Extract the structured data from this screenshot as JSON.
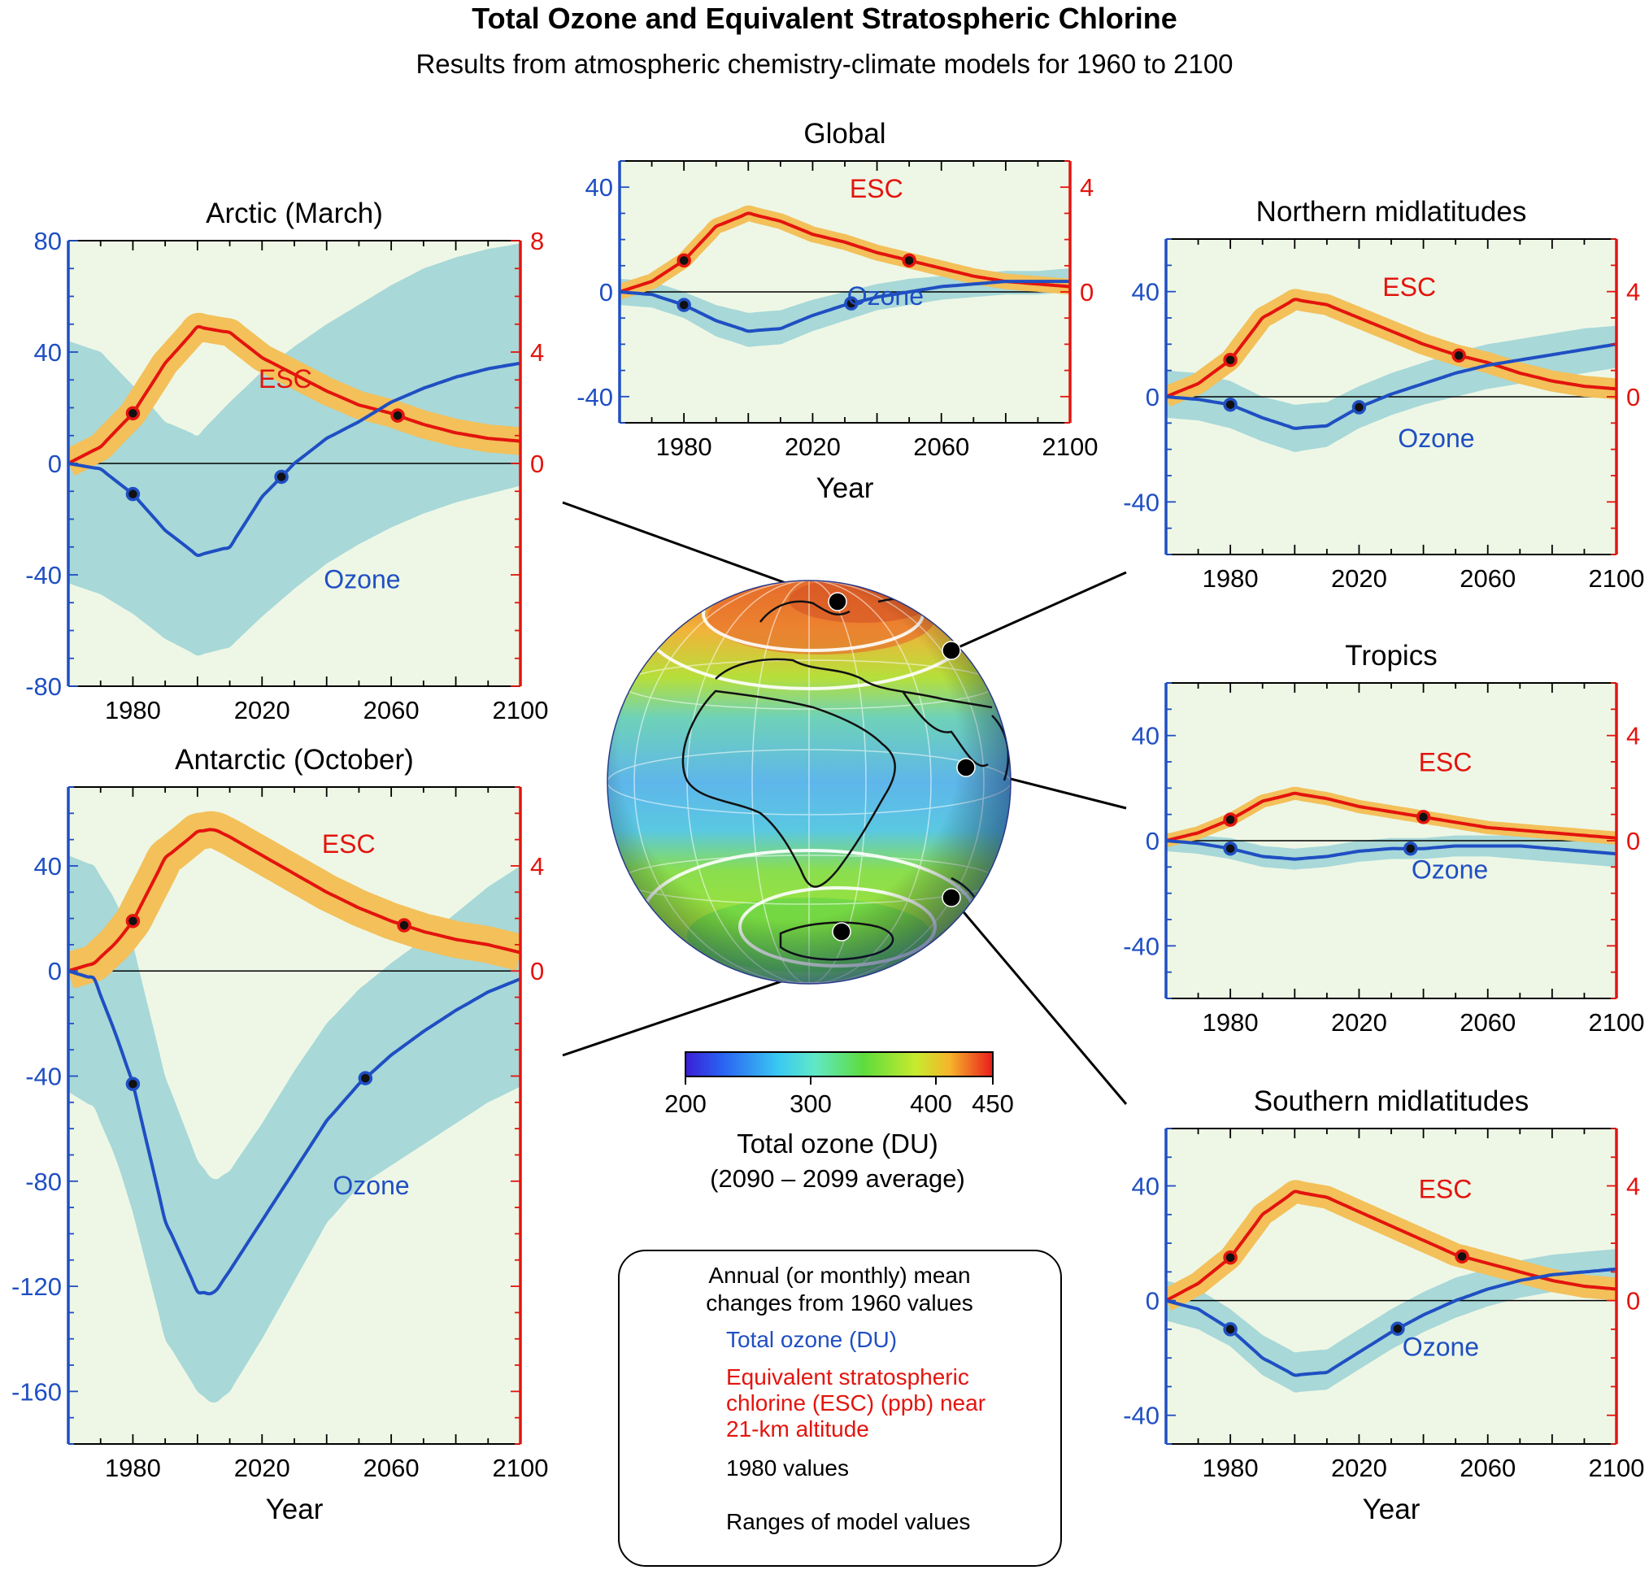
{
  "title": "Total Ozone and Equivalent Stratospheric Chlorine",
  "subtitle": "Results from atmospheric chemistry-climate models for 1960 to 2100",
  "colors": {
    "ozone": "#1f4fc2",
    "esc": "#e3140e",
    "ozone_band": "#a8d8d8",
    "esc_band": "#f3c05a",
    "panel_bg": "#eef7e6",
    "left_axis": "#1f4fc2",
    "right_axis": "#e3140e"
  },
  "colorbar": {
    "ticks": [
      "200",
      "300",
      "400",
      "450"
    ],
    "label": "Total ozone (DU)",
    "sublabel": "(2090 – 2099 average)"
  },
  "legend": {
    "heading_line1": "Annual (or monthly) mean",
    "heading_line2": "changes from 1960 values",
    "ozone_label": "Total ozone (DU)",
    "esc_label_line1": "Equivalent stratospheric",
    "esc_label_line2": "chlorine (ESC) (ppb) near",
    "esc_label_line3": "21-km altitude",
    "points_label": "1980 values",
    "ranges_label": "Ranges of model values"
  },
  "chart_data": [
    {
      "type": "line",
      "title": "Arctic (March)",
      "xlabel": "",
      "xticks": [
        "1980",
        "2020",
        "2060",
        "2100"
      ],
      "xlim": [
        1960,
        2100
      ],
      "ylim_left": [
        -80,
        80
      ],
      "ylim_right": [
        -8,
        8
      ],
      "yticks_left": [
        "80",
        "40",
        "0",
        "-40",
        "-80"
      ],
      "yticks_right": [
        "8",
        "4",
        "0"
      ],
      "ozone_label": "Ozone",
      "esc_label": "ESC",
      "x": [
        1960,
        1970,
        1980,
        1990,
        2000,
        2010,
        2020,
        2030,
        2040,
        2050,
        2060,
        2070,
        2080,
        2090,
        2100
      ],
      "ozone": [
        0,
        -2,
        -11,
        -24,
        -33,
        -30,
        -12,
        0,
        9,
        15,
        22,
        27,
        31,
        34,
        36
      ],
      "ozone_band_low": [
        -43,
        -47,
        -54,
        -63,
        -69,
        -66,
        -55,
        -45,
        -36,
        -29,
        -23,
        -18,
        -14,
        -11,
        -8
      ],
      "ozone_band_high": [
        44,
        40,
        28,
        15,
        10,
        22,
        33,
        42,
        50,
        57,
        64,
        70,
        74,
        77,
        79
      ],
      "esc": [
        0,
        0.6,
        1.8,
        3.6,
        4.9,
        4.7,
        3.8,
        3.2,
        2.6,
        2.1,
        1.8,
        1.4,
        1.1,
        0.9,
        0.8
      ],
      "esc_band": 0.5,
      "points_1980_x": [
        1980,
        2026
      ],
      "points_esc_x": [
        1980,
        2062
      ]
    },
    {
      "type": "line",
      "title": "Antarctic (October)",
      "xlabel": "Year",
      "xticks": [
        "1980",
        "2020",
        "2060",
        "2100"
      ],
      "xlim": [
        1960,
        2100
      ],
      "ylim_left": [
        -180,
        70
      ],
      "ylim_right": [
        -18,
        7
      ],
      "yticks_left": [
        "40",
        "0",
        "-40",
        "-80",
        "-120",
        "-160"
      ],
      "yticks_right": [
        "4",
        "0"
      ],
      "ozone_label": "Ozone",
      "esc_label": "ESC",
      "x": [
        1960,
        1968,
        1975,
        1980,
        1990,
        2000,
        2005,
        2010,
        2020,
        2030,
        2040,
        2050,
        2060,
        2070,
        2080,
        2090,
        2100
      ],
      "ozone": [
        0,
        -3,
        -25,
        -43,
        -95,
        -122,
        -123,
        -114,
        -95,
        -76,
        -57,
        -43,
        -32,
        -23,
        -15,
        -8,
        -3
      ],
      "ozone_band_low": [
        -46,
        -52,
        -72,
        -92,
        -140,
        -160,
        -165,
        -160,
        -140,
        -118,
        -96,
        -82,
        -74,
        -66,
        -58,
        -50,
        -44
      ],
      "ozone_band_high": [
        44,
        40,
        26,
        10,
        -40,
        -72,
        -80,
        -76,
        -58,
        -38,
        -20,
        -7,
        3,
        12,
        22,
        32,
        40
      ],
      "esc": [
        0,
        0.3,
        1.1,
        1.9,
        4.3,
        5.3,
        5.4,
        5.1,
        4.4,
        3.7,
        3.0,
        2.4,
        1.9,
        1.5,
        1.2,
        1.0,
        0.7
      ],
      "esc_band": 0.7,
      "points_1980_x": [
        1980,
        2052
      ],
      "points_esc_x": [
        1980,
        2064
      ]
    },
    {
      "type": "line",
      "title": "Global",
      "xlabel": "Year",
      "xticks": [
        "1980",
        "2020",
        "2060",
        "2100"
      ],
      "xlim": [
        1960,
        2100
      ],
      "ylim_left": [
        -50,
        50
      ],
      "ylim_right": [
        -5,
        5
      ],
      "yticks_left": [
        "40",
        "0",
        "-40"
      ],
      "yticks_right": [
        "4",
        "0"
      ],
      "ozone_label": "Ozone",
      "esc_label": "ESC",
      "x": [
        1960,
        1970,
        1980,
        1990,
        2000,
        2010,
        2020,
        2030,
        2040,
        2050,
        2060,
        2070,
        2080,
        2090,
        2100
      ],
      "ozone": [
        0,
        -1,
        -5,
        -11,
        -15,
        -14,
        -9,
        -5,
        -2,
        0,
        2,
        3,
        4,
        4,
        4
      ],
      "ozone_band_low": [
        -5,
        -6,
        -10,
        -17,
        -21,
        -20,
        -15,
        -11,
        -7,
        -5,
        -3,
        -2,
        -1,
        -1,
        0
      ],
      "ozone_band_high": [
        5,
        4,
        0,
        -5,
        -8,
        -7,
        -3,
        0,
        3,
        5,
        6,
        7,
        8,
        8,
        9
      ],
      "esc": [
        0,
        0.4,
        1.2,
        2.5,
        3.0,
        2.7,
        2.2,
        1.9,
        1.5,
        1.2,
        0.9,
        0.6,
        0.4,
        0.3,
        0.2
      ],
      "esc_band": 0.3,
      "points_1980_x": [
        1980,
        2032
      ],
      "points_esc_x": [
        1980,
        2050
      ]
    },
    {
      "type": "line",
      "title": "Northern midlatitudes",
      "xlabel": "",
      "xticks": [
        "1980",
        "2020",
        "2060",
        "2100"
      ],
      "xlim": [
        1960,
        2100
      ],
      "ylim_left": [
        -60,
        60
      ],
      "ylim_right": [
        -6,
        6
      ],
      "yticks_left": [
        "40",
        "0",
        "-40"
      ],
      "yticks_right": [
        "4",
        "0"
      ],
      "ozone_label": "Ozone",
      "esc_label": "ESC",
      "x": [
        1960,
        1970,
        1980,
        1990,
        2000,
        2010,
        2020,
        2030,
        2040,
        2050,
        2060,
        2070,
        2080,
        2090,
        2100
      ],
      "ozone": [
        0,
        -1,
        -3,
        -8,
        -12,
        -11,
        -4,
        1,
        5,
        9,
        12,
        14,
        16,
        18,
        20
      ],
      "ozone_band_low": [
        -8,
        -9,
        -12,
        -17,
        -21,
        -19,
        -12,
        -7,
        -3,
        0,
        3,
        5,
        7,
        9,
        11
      ],
      "ozone_band_high": [
        10,
        9,
        6,
        0,
        -3,
        -2,
        4,
        9,
        13,
        17,
        20,
        22,
        24,
        26,
        27
      ],
      "esc": [
        0,
        0.5,
        1.4,
        3.0,
        3.7,
        3.5,
        3.0,
        2.5,
        2.0,
        1.6,
        1.3,
        0.9,
        0.6,
        0.4,
        0.3
      ],
      "esc_band": 0.4,
      "points_1980_x": [
        1980,
        2020
      ],
      "points_esc_x": [
        1980,
        2051
      ]
    },
    {
      "type": "line",
      "title": "Tropics",
      "xlabel": "",
      "xticks": [
        "1980",
        "2020",
        "2060",
        "2100"
      ],
      "xlim": [
        1960,
        2100
      ],
      "ylim_left": [
        -60,
        60
      ],
      "ylim_right": [
        -6,
        6
      ],
      "yticks_left": [
        "40",
        "0",
        "-40"
      ],
      "yticks_right": [
        "4",
        "0"
      ],
      "ozone_label": "Ozone",
      "esc_label": "ESC",
      "x": [
        1960,
        1970,
        1980,
        1990,
        2000,
        2010,
        2020,
        2030,
        2040,
        2050,
        2060,
        2070,
        2080,
        2090,
        2100
      ],
      "ozone": [
        0,
        -1,
        -3,
        -6,
        -7,
        -6,
        -4,
        -3,
        -3,
        -2,
        -2,
        -2,
        -3,
        -4,
        -5
      ],
      "ozone_band_low": [
        -4,
        -5,
        -7,
        -10,
        -11,
        -10,
        -8,
        -7,
        -7,
        -6,
        -6,
        -7,
        -8,
        -9,
        -10
      ],
      "ozone_band_high": [
        3,
        2,
        1,
        -2,
        -3,
        -2,
        0,
        1,
        1,
        2,
        2,
        2,
        1,
        0,
        -1
      ],
      "esc": [
        0,
        0.3,
        0.8,
        1.5,
        1.8,
        1.6,
        1.3,
        1.1,
        0.9,
        0.7,
        0.5,
        0.4,
        0.3,
        0.2,
        0.1
      ],
      "esc_band": 0.25,
      "points_1980_x": [
        1980,
        2036
      ],
      "points_esc_x": [
        1980,
        2040
      ]
    },
    {
      "type": "line",
      "title": "Southern midlatitudes",
      "xlabel": "Year",
      "xticks": [
        "1980",
        "2020",
        "2060",
        "2100"
      ],
      "xlim": [
        1960,
        2100
      ],
      "ylim_left": [
        -50,
        60
      ],
      "ylim_right": [
        -5,
        6
      ],
      "yticks_left": [
        "40",
        "0",
        "-40"
      ],
      "yticks_right": [
        "4",
        "0"
      ],
      "ozone_label": "Ozone",
      "esc_label": "ESC",
      "x": [
        1960,
        1970,
        1980,
        1990,
        2000,
        2010,
        2020,
        2030,
        2040,
        2050,
        2060,
        2070,
        2080,
        2090,
        2100
      ],
      "ozone": [
        0,
        -3,
        -10,
        -20,
        -26,
        -25,
        -18,
        -11,
        -5,
        0,
        4,
        7,
        9,
        10,
        11
      ],
      "ozone_band_low": [
        -7,
        -10,
        -16,
        -26,
        -32,
        -31,
        -24,
        -17,
        -11,
        -6,
        -2,
        1,
        3,
        4,
        5
      ],
      "ozone_band_high": [
        7,
        4,
        -3,
        -12,
        -18,
        -17,
        -10,
        -3,
        3,
        8,
        11,
        14,
        16,
        17,
        18
      ],
      "esc": [
        0,
        0.6,
        1.5,
        3.0,
        3.8,
        3.6,
        3.1,
        2.6,
        2.1,
        1.6,
        1.3,
        1.0,
        0.7,
        0.5,
        0.4
      ],
      "esc_band": 0.4,
      "points_1980_x": [
        1980,
        2032
      ],
      "points_esc_x": [
        1980,
        2052
      ]
    }
  ]
}
